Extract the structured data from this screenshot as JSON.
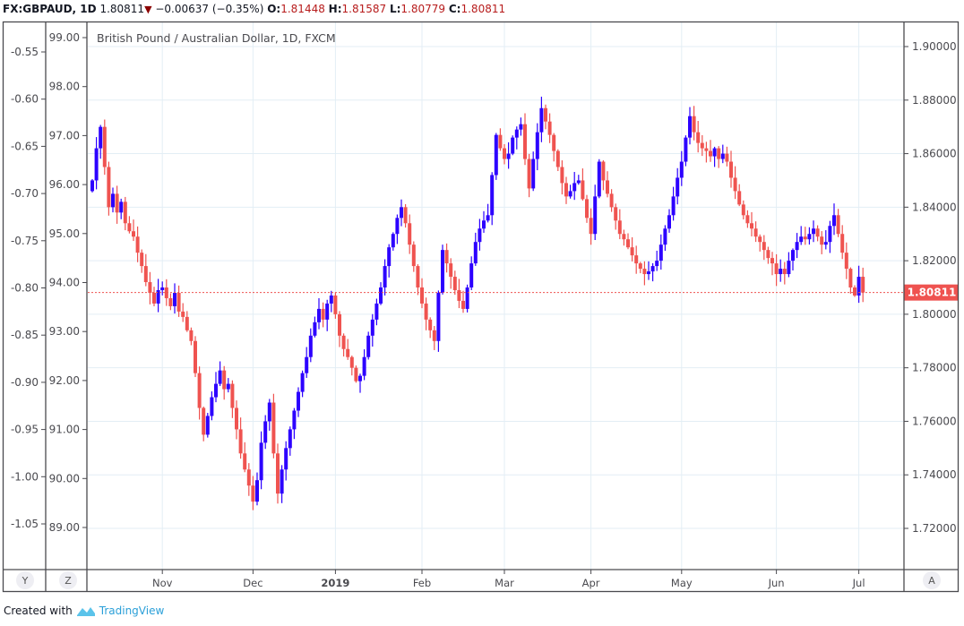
{
  "header": {
    "symbol": "FX:GBPAUD, 1D",
    "last": "1.80811",
    "change": "−0.00637 (−0.35%)",
    "o_label": "O:",
    "o": "1.81448",
    "h_label": "H:",
    "h": "1.81587",
    "l_label": "L:",
    "l": "1.80779",
    "c_label": "C:",
    "c": "1.80811"
  },
  "footer": {
    "created_with": "Created with",
    "brand": "TradingView"
  },
  "axis_buttons": {
    "y": "Y",
    "z": "Z",
    "a": "A"
  },
  "colors": {
    "up": "#2c00ff",
    "down": "#ef5350",
    "grid": "#e3eef5",
    "frame": "#4a4a4f",
    "price_label": "#ef5350"
  },
  "chart_data": {
    "type": "candlestick",
    "title": "British Pound / Australian Dollar, 1D, FXCM",
    "price_label": "1.80811",
    "last_price": 1.80811,
    "right_axis": {
      "ylim": [
        1.7,
        1.91
      ],
      "ticks": [
        "1.90000",
        "1.88000",
        "1.86000",
        "1.84000",
        "1.82000",
        "1.80000",
        "1.78000",
        "1.76000",
        "1.74000",
        "1.72000"
      ]
    },
    "left_axis_1": {
      "ticks": [
        "-0.55",
        "-0.60",
        "-0.65",
        "-0.70",
        "-0.75",
        "-0.80",
        "-0.85",
        "-0.90",
        "-0.95",
        "-1.00",
        "-1.05"
      ]
    },
    "left_axis_2": {
      "ticks": [
        "99.00",
        "98.00",
        "97.00",
        "96.00",
        "95.00",
        "94.00",
        "93.00",
        "92.00",
        "91.00",
        "90.00",
        "89.00"
      ]
    },
    "x_ticks": [
      {
        "label": "Nov",
        "index": 17
      },
      {
        "label": "Dec",
        "index": 39
      },
      {
        "label": "2019",
        "index": 59
      },
      {
        "label": "Feb",
        "index": 80
      },
      {
        "label": "Mar",
        "index": 100
      },
      {
        "label": "Apr",
        "index": 121
      },
      {
        "label": "May",
        "index": 143
      },
      {
        "label": "Jun",
        "index": 166
      },
      {
        "label": "Jul",
        "index": 186
      }
    ],
    "first_open": 1.846,
    "closes": [
      1.85,
      1.862,
      1.87,
      1.855,
      1.84,
      1.845,
      1.838,
      1.842,
      1.834,
      1.831,
      1.829,
      1.823,
      1.818,
      1.812,
      1.808,
      1.804,
      1.809,
      1.81,
      1.806,
      1.803,
      1.808,
      1.801,
      1.799,
      1.794,
      1.79,
      1.778,
      1.765,
      1.755,
      1.762,
      1.769,
      1.774,
      1.779,
      1.772,
      1.774,
      1.765,
      1.757,
      1.748,
      1.742,
      1.736,
      1.73,
      1.738,
      1.752,
      1.76,
      1.767,
      1.748,
      1.733,
      1.742,
      1.75,
      1.757,
      1.764,
      1.771,
      1.778,
      1.784,
      1.792,
      1.797,
      1.802,
      1.798,
      1.804,
      1.807,
      1.8,
      1.792,
      1.787,
      1.784,
      1.78,
      1.775,
      1.777,
      1.784,
      1.792,
      1.798,
      1.804,
      1.81,
      1.818,
      1.825,
      1.83,
      1.836,
      1.84,
      1.834,
      1.826,
      1.818,
      1.81,
      1.804,
      1.798,
      1.794,
      1.79,
      1.808,
      1.824,
      1.819,
      1.814,
      1.809,
      1.805,
      1.802,
      1.81,
      1.819,
      1.827,
      1.832,
      1.835,
      1.837,
      1.852,
      1.867,
      1.862,
      1.858,
      1.86,
      1.866,
      1.869,
      1.871,
      1.858,
      1.847,
      1.858,
      1.868,
      1.877,
      1.872,
      1.867,
      1.861,
      1.855,
      1.849,
      1.844,
      1.846,
      1.849,
      1.85,
      1.843,
      1.836,
      1.83,
      1.844,
      1.857,
      1.85,
      1.845,
      1.84,
      1.835,
      1.83,
      1.828,
      1.825,
      1.822,
      1.819,
      1.817,
      1.815,
      1.816,
      1.818,
      1.82,
      1.826,
      1.832,
      1.837,
      1.844,
      1.851,
      1.857,
      1.866,
      1.874,
      1.868,
      1.864,
      1.862,
      1.861,
      1.859,
      1.862,
      1.858,
      1.86,
      1.857,
      1.851,
      1.846,
      1.841,
      1.837,
      1.834,
      1.832,
      1.829,
      1.827,
      1.824,
      1.821,
      1.819,
      1.815,
      1.817,
      1.815,
      1.82,
      1.824,
      1.827,
      1.829,
      1.828,
      1.83,
      1.832,
      1.829,
      1.826,
      1.827,
      1.833,
      1.837,
      1.83,
      1.823,
      1.817,
      1.81,
      1.807,
      1.814,
      1.8081
    ]
  }
}
